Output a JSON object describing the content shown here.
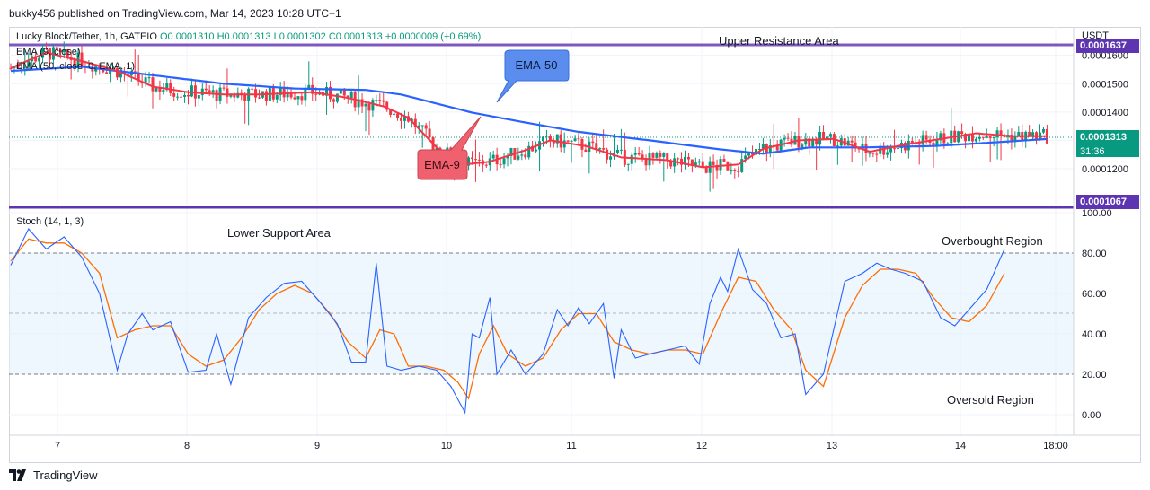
{
  "publisher": "bukky456 published on TradingView.com, Mar 14, 2023 10:28 UTC+1",
  "header": {
    "symbol": "Lucky Block/Tether, 1h, GATEIO",
    "open": "O0.0001310",
    "high": "H0.0001313",
    "low": "L0.0001302",
    "close": "C0.0001313",
    "change": "+0.0000009 (+0.69%)"
  },
  "legends": {
    "ema9": "EMA (9, close)",
    "ema50": "EMA (50, close, 0, EMA, 1)",
    "stoch": "Stoch (14, 1, 3)"
  },
  "annotations": {
    "upper": "Upper Resistance Area",
    "lower": "Lower Support Area",
    "overbought": "Overbought Region",
    "oversold": "Oversold Region",
    "ema50_callout": "EMA-50",
    "ema9_callout": "EMA-9"
  },
  "price_axis": {
    "currency": "USDT",
    "ticks": [
      "0.0001600",
      "0.0001500",
      "0.0001400",
      "0.0001300",
      "0.0001200"
    ],
    "current_price": "0.0001313",
    "countdown": "31:36",
    "resistance_label": "0.0001637",
    "support_label": "0.0001067"
  },
  "stoch_axis": {
    "ticks": [
      "100.00",
      "80.00",
      "60.00",
      "40.00",
      "20.00",
      "0.00"
    ]
  },
  "time_axis": {
    "ticks": [
      "7",
      "8",
      "9",
      "10",
      "11",
      "12",
      "13",
      "14",
      "18:00"
    ]
  },
  "colors": {
    "up": "#089981",
    "down": "#f23645",
    "ema9": "#f23645",
    "ema50": "#2962ff",
    "sr_line": "#7e57c2",
    "stoch_k": "#2962ff",
    "stoch_d": "#ff6d00",
    "stoch_band": "#e3f2fd",
    "ema50_box": "#5b8def",
    "ema9_box": "#f0616f",
    "tag_current": "#089981",
    "tag_sr": "#5e35b1"
  },
  "brand": "TradingView",
  "chart_data": [
    {
      "type": "candlestick",
      "title": "Lucky Block/Tether, 1h, GATEIO",
      "x_ticks": [
        "7",
        "8",
        "9",
        "10",
        "11",
        "12",
        "13",
        "14",
        "18:00"
      ],
      "ylim": [
        0.0001067,
        0.0001637
      ],
      "resistance": 0.0001637,
      "support": 0.0001067,
      "last_close": 0.0001313,
      "ema_periods": [
        9,
        50
      ],
      "ema9_anchors": [
        [
          0,
          0.0001555
        ],
        [
          10,
          0.000161
        ],
        [
          20,
          0.000158
        ],
        [
          30,
          0.0001545
        ],
        [
          40,
          0.000149
        ],
        [
          50,
          0.000147
        ],
        [
          60,
          0.0001462
        ],
        [
          70,
          0.0001462
        ],
        [
          85,
          0.000147
        ],
        [
          95,
          0.000145
        ],
        [
          105,
          0.000142
        ],
        [
          112,
          0.000138
        ],
        [
          120,
          0.0001275
        ],
        [
          128,
          0.0001215
        ],
        [
          135,
          0.0001225
        ],
        [
          145,
          0.0001265
        ],
        [
          152,
          0.00013
        ],
        [
          162,
          0.000128
        ],
        [
          172,
          0.000124
        ],
        [
          185,
          0.000123
        ],
        [
          195,
          0.0001205
        ],
        [
          205,
          0.0001215
        ],
        [
          212,
          0.000127
        ],
        [
          222,
          0.00013
        ],
        [
          232,
          0.0001305
        ],
        [
          242,
          0.000126
        ],
        [
          252,
          0.0001285
        ],
        [
          262,
          0.0001305
        ],
        [
          272,
          0.0001325
        ],
        [
          282,
          0.0001315
        ],
        [
          292,
          0.0001315
        ]
      ],
      "ema50_anchors": [
        [
          0,
          0.0001545
        ],
        [
          20,
          0.000156
        ],
        [
          40,
          0.000153
        ],
        [
          60,
          0.00015
        ],
        [
          80,
          0.0001483
        ],
        [
          100,
          0.0001478
        ],
        [
          110,
          0.0001462
        ],
        [
          120,
          0.000143
        ],
        [
          130,
          0.0001398
        ],
        [
          145,
          0.0001363
        ],
        [
          160,
          0.000133
        ],
        [
          180,
          0.00013
        ],
        [
          200,
          0.0001268
        ],
        [
          212,
          0.0001253
        ],
        [
          225,
          0.0001275
        ],
        [
          240,
          0.0001275
        ],
        [
          260,
          0.000128
        ],
        [
          280,
          0.0001295
        ],
        [
          292,
          0.0001305
        ]
      ]
    },
    {
      "type": "line",
      "title": "Stoch (14, 1, 3)",
      "ylim": [
        0,
        100
      ],
      "levels": [
        80,
        50,
        20
      ],
      "series": [
        {
          "name": "%K",
          "points": [
            [
              0,
              74
            ],
            [
              5,
              92
            ],
            [
              10,
              82
            ],
            [
              15,
              88
            ],
            [
              20,
              78
            ],
            [
              25,
              60
            ],
            [
              30,
              22
            ],
            [
              33,
              40
            ],
            [
              37,
              50
            ],
            [
              40,
              42
            ],
            [
              45,
              46
            ],
            [
              50,
              21
            ],
            [
              55,
              22
            ],
            [
              58,
              40
            ],
            [
              62,
              15
            ],
            [
              67,
              48
            ],
            [
              72,
              58
            ],
            [
              77,
              65
            ],
            [
              82,
              66
            ],
            [
              87,
              56
            ],
            [
              92,
              45
            ],
            [
              96,
              26
            ],
            [
              100,
              26
            ],
            [
              103,
              75
            ],
            [
              106,
              24
            ],
            [
              110,
              22
            ],
            [
              115,
              24
            ],
            [
              120,
              22
            ],
            [
              124,
              14
            ],
            [
              128,
              1
            ],
            [
              130,
              40
            ],
            [
              132,
              38
            ],
            [
              135,
              58
            ],
            [
              137,
              20
            ],
            [
              141,
              32
            ],
            [
              145,
              20
            ],
            [
              150,
              30
            ],
            [
              154,
              52
            ],
            [
              157,
              44
            ],
            [
              160,
              53
            ],
            [
              163,
              45
            ],
            [
              167,
              55
            ],
            [
              170,
              18
            ],
            [
              172,
              42
            ],
            [
              176,
              28
            ],
            [
              180,
              30
            ],
            [
              185,
              32
            ],
            [
              190,
              34
            ],
            [
              194,
              25
            ],
            [
              197,
              55
            ],
            [
              200,
              68
            ],
            [
              202,
              61
            ],
            [
              205,
              82
            ],
            [
              209,
              62
            ],
            [
              213,
              55
            ],
            [
              217,
              38
            ],
            [
              221,
              40
            ],
            [
              224,
              10
            ],
            [
              229,
              20
            ],
            [
              235,
              66
            ],
            [
              240,
              70
            ],
            [
              244,
              75
            ],
            [
              248,
              72
            ],
            [
              252,
              70
            ],
            [
              257,
              66
            ],
            [
              262,
              48
            ],
            [
              266,
              44
            ],
            [
              270,
              52
            ],
            [
              275,
              62
            ],
            [
              280,
              82
            ]
          ]
        },
        {
          "name": "%D",
          "points": [
            [
              0,
              76
            ],
            [
              5,
              87
            ],
            [
              10,
              85
            ],
            [
              15,
              85
            ],
            [
              20,
              80
            ],
            [
              25,
              70
            ],
            [
              30,
              38
            ],
            [
              35,
              42
            ],
            [
              40,
              44
            ],
            [
              45,
              44
            ],
            [
              50,
              30
            ],
            [
              55,
              24
            ],
            [
              60,
              27
            ],
            [
              65,
              38
            ],
            [
              70,
              52
            ],
            [
              75,
              60
            ],
            [
              80,
              64
            ],
            [
              85,
              60
            ],
            [
              90,
              50
            ],
            [
              95,
              36
            ],
            [
              100,
              28
            ],
            [
              104,
              42
            ],
            [
              108,
              40
            ],
            [
              112,
              24
            ],
            [
              117,
              24
            ],
            [
              122,
              22
            ],
            [
              126,
              16
            ],
            [
              129,
              8
            ],
            [
              132,
              30
            ],
            [
              136,
              44
            ],
            [
              140,
              30
            ],
            [
              145,
              24
            ],
            [
              150,
              28
            ],
            [
              155,
              42
            ],
            [
              160,
              50
            ],
            [
              165,
              50
            ],
            [
              170,
              36
            ],
            [
              175,
              32
            ],
            [
              180,
              30
            ],
            [
              185,
              32
            ],
            [
              190,
              32
            ],
            [
              195,
              30
            ],
            [
              200,
              50
            ],
            [
              205,
              68
            ],
            [
              210,
              66
            ],
            [
              215,
              52
            ],
            [
              220,
              42
            ],
            [
              224,
              22
            ],
            [
              229,
              14
            ],
            [
              235,
              48
            ],
            [
              240,
              64
            ],
            [
              245,
              72
            ],
            [
              250,
              72
            ],
            [
              255,
              70
            ],
            [
              260,
              58
            ],
            [
              265,
              48
            ],
            [
              270,
              46
            ],
            [
              275,
              54
            ],
            [
              280,
              70
            ]
          ]
        }
      ]
    }
  ]
}
